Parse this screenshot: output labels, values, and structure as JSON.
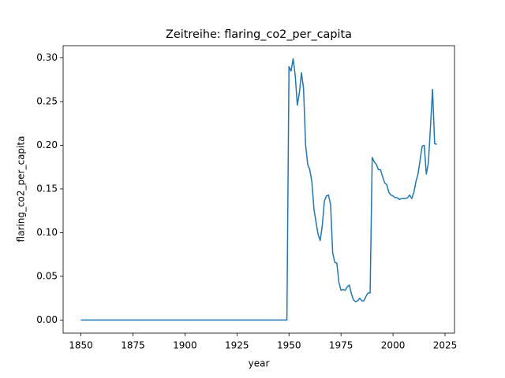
{
  "chart_data": {
    "type": "line",
    "title": "Zeitreihe: flaring_co2_per_capita",
    "x_label": "year",
    "y_label": "flaring_co2_per_capita",
    "series": [
      {
        "name": "flaring_co2_per_capita",
        "color": "#1f77b4",
        "x": [
          1850,
          1949,
          1950,
          1951,
          1952,
          1953,
          1954,
          1955,
          1956,
          1957,
          1958,
          1959,
          1960,
          1961,
          1962,
          1963,
          1964,
          1965,
          1966,
          1967,
          1968,
          1969,
          1970,
          1971,
          1972,
          1973,
          1974,
          1975,
          1976,
          1977,
          1978,
          1979,
          1980,
          1981,
          1982,
          1983,
          1984,
          1985,
          1986,
          1987,
          1988,
          1989,
          1990,
          1991,
          1992,
          1993,
          1994,
          1995,
          1996,
          1997,
          1998,
          1999,
          2000,
          2001,
          2002,
          2003,
          2004,
          2005,
          2006,
          2007,
          2008,
          2009,
          2010,
          2011,
          2012,
          2013,
          2014,
          2015,
          2016,
          2017,
          2018,
          2019,
          2020,
          2021
        ],
        "values": [
          0,
          0,
          0.29,
          0.285,
          0.299,
          0.28,
          0.246,
          0.26,
          0.283,
          0.265,
          0.2,
          0.178,
          0.172,
          0.158,
          0.127,
          0.112,
          0.098,
          0.091,
          0.108,
          0.136,
          0.142,
          0.143,
          0.132,
          0.077,
          0.066,
          0.065,
          0.043,
          0.034,
          0.035,
          0.034,
          0.038,
          0.04,
          0.03,
          0.023,
          0.021,
          0.022,
          0.025,
          0.022,
          0.022,
          0.027,
          0.031,
          0.031,
          0.186,
          0.181,
          0.178,
          0.172,
          0.172,
          0.164,
          0.157,
          0.155,
          0.146,
          0.143,
          0.142,
          0.14,
          0.14,
          0.138,
          0.139,
          0.139,
          0.139,
          0.14,
          0.143,
          0.139,
          0.146,
          0.158,
          0.167,
          0.183,
          0.199,
          0.2,
          0.167,
          0.18,
          0.221,
          0.264,
          0.202,
          0.201
        ]
      }
    ],
    "xlim": [
      1841.45,
      2029.55
    ],
    "xticks": [
      1850,
      1875,
      1900,
      1925,
      1950,
      1975,
      2000,
      2025
    ],
    "ylim": [
      -0.015,
      0.314
    ],
    "yticks": [
      {
        "value": 0,
        "label": "0.00"
      },
      {
        "value": 0.05,
        "label": "0.05"
      },
      {
        "value": 0.1,
        "label": "0.10"
      },
      {
        "value": 0.15,
        "label": "0.15"
      },
      {
        "value": 0.2,
        "label": "0.20"
      },
      {
        "value": 0.25,
        "label": "0.25"
      },
      {
        "value": 0.3,
        "label": "0.30"
      }
    ],
    "grid": false
  }
}
